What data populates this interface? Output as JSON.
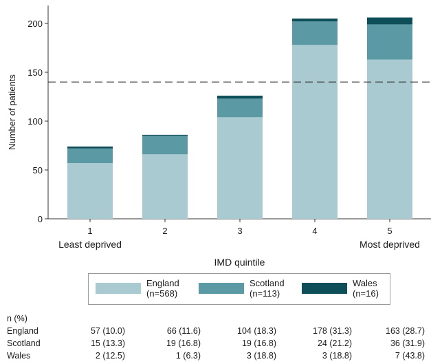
{
  "chart_data": {
    "type": "bar",
    "stacked": true,
    "categories": [
      "1",
      "2",
      "3",
      "4",
      "5"
    ],
    "category_sublabels": {
      "1": "Least deprived",
      "5": "Most deprived"
    },
    "xlabel": "IMD quintile",
    "ylabel": "Number of patients",
    "ylim": [
      0,
      215
    ],
    "yticks": [
      0,
      50,
      100,
      150,
      200
    ],
    "reference_line": {
      "y": 140,
      "style": "dashed"
    },
    "legend_position": "bottom",
    "series": [
      {
        "name": "England",
        "legend_label": "England\n(n=568)",
        "color": "#a9cad0",
        "values": [
          57,
          66,
          104,
          178,
          163
        ]
      },
      {
        "name": "Scotland",
        "legend_label": "Scotland\n(n=113)",
        "color": "#5b9aa4",
        "values": [
          15,
          19,
          19,
          24,
          36
        ]
      },
      {
        "name": "Wales",
        "legend_label": "Wales\n(n=16)",
        "color": "#0e4e59",
        "values": [
          2,
          1,
          3,
          3,
          7
        ]
      }
    ]
  },
  "table": {
    "title": "n (%)",
    "rows": [
      {
        "label": "England",
        "cells": [
          "57 (10.0)",
          "66 (11.6)",
          "104 (18.3)",
          "178 (31.3)",
          "163 (28.7)"
        ]
      },
      {
        "label": "Scotland",
        "cells": [
          "15 (13.3)",
          "19 (16.8)",
          "19 (16.8)",
          "24 (21.2)",
          "36 (31.9)"
        ]
      },
      {
        "label": "Wales",
        "cells": [
          "2 (12.5)",
          "1 (6.3)",
          "3 (18.8)",
          "3 (18.8)",
          "7 (43.8)"
        ]
      }
    ]
  }
}
